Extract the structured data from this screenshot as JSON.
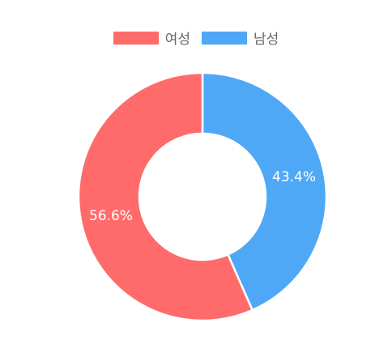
{
  "chart_data": {
    "type": "pie",
    "donut": true,
    "title": "",
    "legend_position": "top",
    "series": [
      {
        "name": "여성",
        "value": 56.6,
        "label": "56.6%",
        "color": "#ff6b6b"
      },
      {
        "name": "남성",
        "value": 43.4,
        "label": "43.4%",
        "color": "#4fa8f5"
      }
    ]
  }
}
